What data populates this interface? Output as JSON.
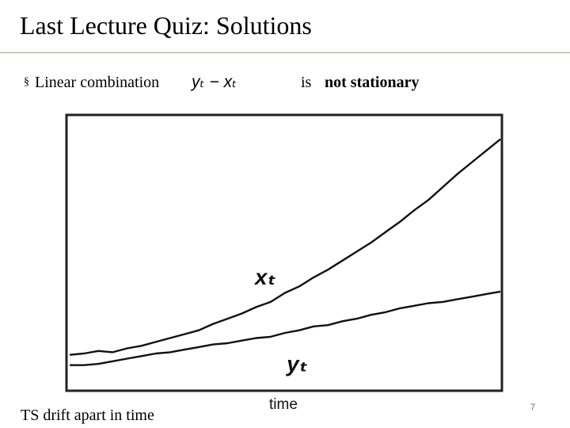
{
  "slide": {
    "title": "Last Lecture Quiz: Solutions",
    "bullet": {
      "marker": "§",
      "lead_text": "Linear combination",
      "formula": "yₜ − xₜ",
      "is_word": "is",
      "emphasis": "not stationary"
    },
    "footer_text": "TS  drift apart in time",
    "page_number": "7"
  },
  "chart_data": {
    "type": "line",
    "xlabel": "time",
    "grid": false,
    "x": [
      0,
      1,
      2,
      3,
      4,
      5,
      6,
      7,
      8,
      9,
      10,
      11,
      12,
      13,
      14,
      15,
      16,
      17,
      18,
      19,
      20,
      21,
      22,
      23,
      24,
      25,
      26,
      27,
      28,
      29,
      30
    ],
    "series": [
      {
        "name": "xₜ",
        "values": [
          9.6,
          9.7,
          9.9,
          9.8,
          10.1,
          10.3,
          10.6,
          10.9,
          11.2,
          11.5,
          12.0,
          12.4,
          12.8,
          13.3,
          13.7,
          14.4,
          14.9,
          15.6,
          16.2,
          16.9,
          17.6,
          18.3,
          19.1,
          19.9,
          20.8,
          21.6,
          22.6,
          23.6,
          24.5,
          25.4,
          26.3
        ]
      },
      {
        "name": "yₜ",
        "values": [
          8.8,
          8.8,
          8.9,
          9.1,
          9.3,
          9.5,
          9.7,
          9.8,
          10.0,
          10.2,
          10.4,
          10.5,
          10.7,
          10.9,
          11.0,
          11.3,
          11.5,
          11.8,
          11.9,
          12.2,
          12.4,
          12.7,
          12.9,
          13.2,
          13.4,
          13.6,
          13.7,
          13.9,
          14.1,
          14.3,
          14.5
        ]
      }
    ],
    "ylim": [
      7,
      28
    ],
    "xlim": [
      0,
      30
    ]
  }
}
